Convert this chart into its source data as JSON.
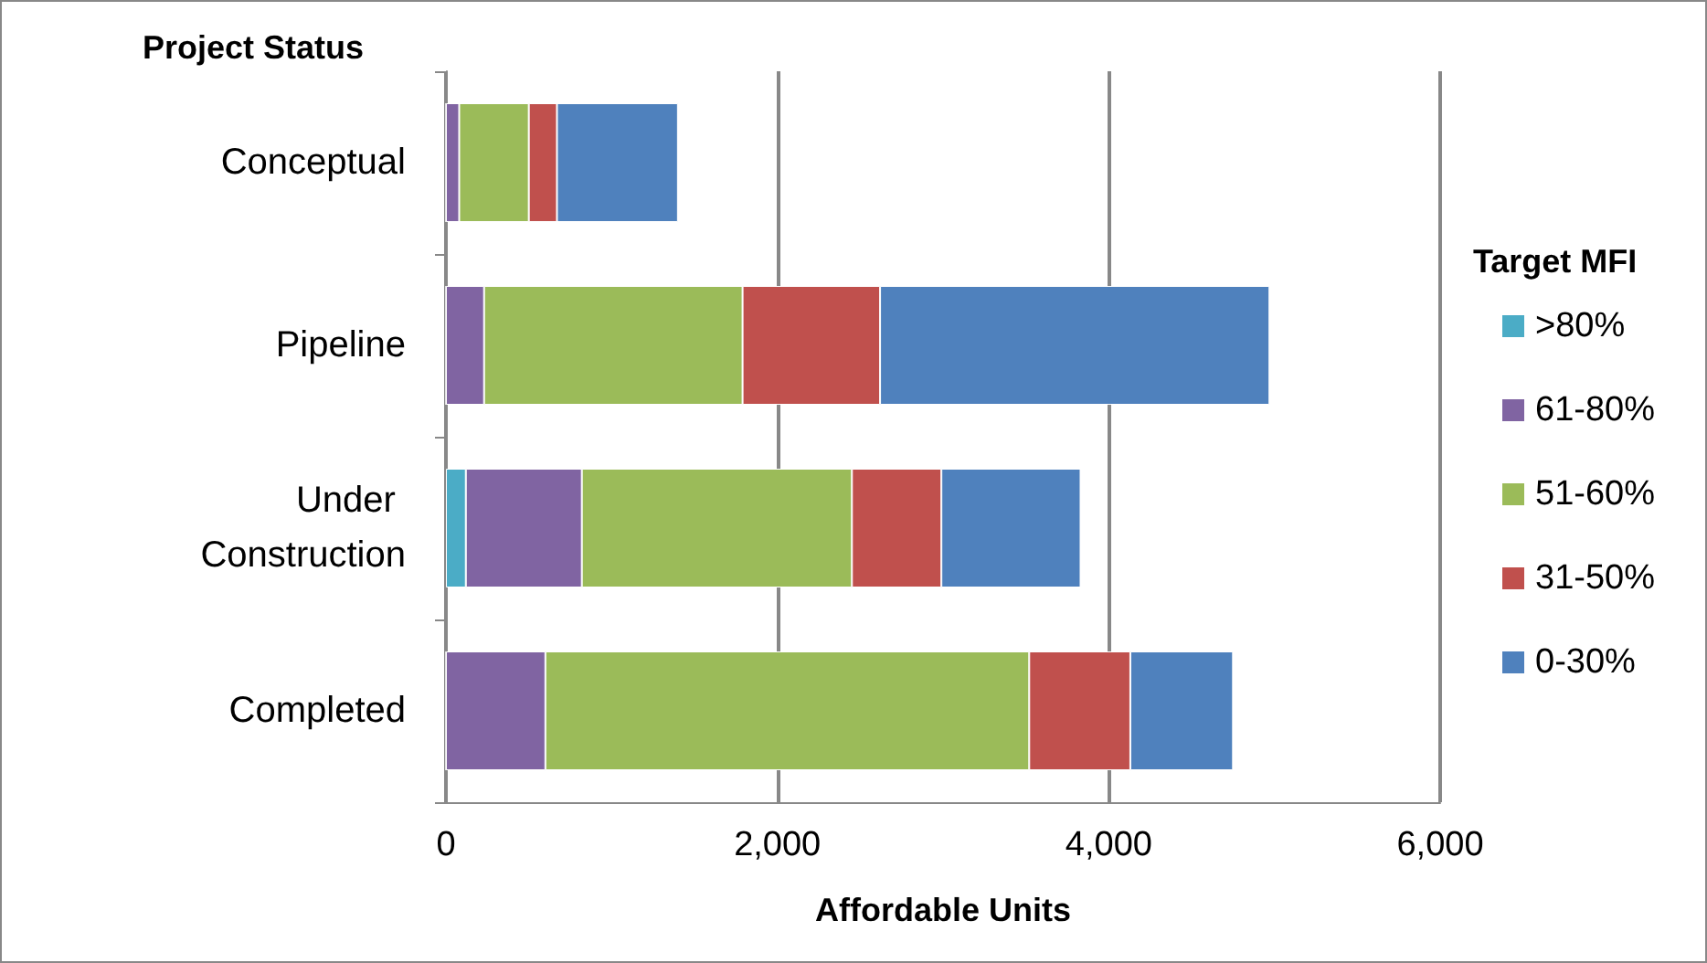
{
  "chart_data": {
    "type": "bar",
    "orientation": "horizontal",
    "stacked": true,
    "ylabel": "Project Status",
    "xlabel": "Affordable Units",
    "legend_title": "Target MFI",
    "legend": "right",
    "grid": "x",
    "categories": [
      "Conceptual",
      "Pipeline",
      "Under Construction",
      "Completed"
    ],
    "xlim": [
      0,
      6000
    ],
    "xticks": [
      0,
      {
        "value": 2000,
        "label": "2,000"
      },
      {
        "value": 4000,
        "label": "4,000"
      },
      {
        "value": 6000,
        "label": "6,000"
      }
    ],
    "series": [
      {
        "name": ">80%",
        "color": "#4bacc6",
        "values": [
          0,
          0,
          120,
          0
        ]
      },
      {
        "name": "61-80%",
        "color": "#8064a2",
        "values": [
          80,
          230,
          700,
          600
        ]
      },
      {
        "name": "51-60%",
        "color": "#9bbb59",
        "values": [
          420,
          1560,
          1630,
          2920
        ]
      },
      {
        "name": "31-50%",
        "color": "#c0504d",
        "values": [
          170,
          830,
          540,
          610
        ]
      },
      {
        "name": "0-30%",
        "color": "#4f81bd",
        "values": [
          730,
          2350,
          840,
          620
        ]
      }
    ]
  }
}
